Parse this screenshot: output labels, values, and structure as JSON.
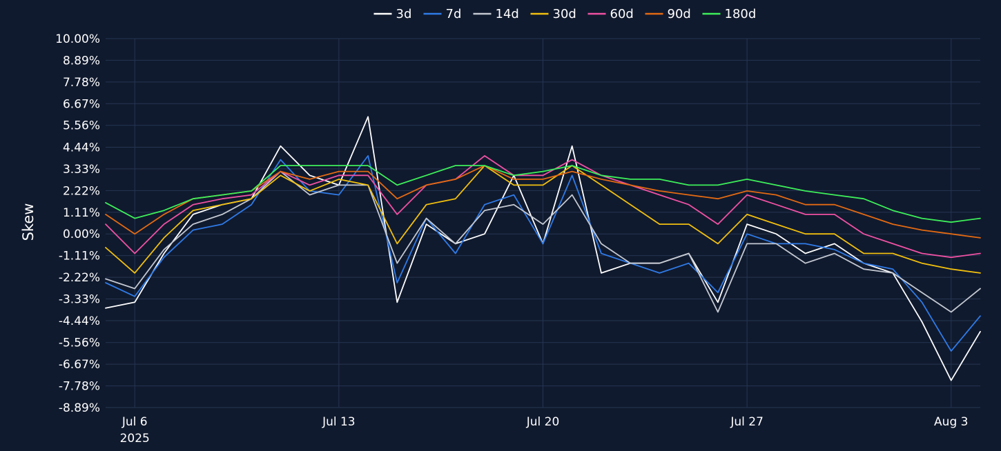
{
  "chart_data": {
    "type": "line",
    "title": "",
    "xlabel": "",
    "ylabel": "Skew",
    "ylim": [
      -8.89,
      10.0
    ],
    "yticks": [
      "10.00%",
      "8.89%",
      "7.78%",
      "6.67%",
      "5.56%",
      "4.44%",
      "3.33%",
      "2.22%",
      "1.11%",
      "0.00%",
      "-1.11%",
      "-2.22%",
      "-3.33%",
      "-4.44%",
      "-5.56%",
      "-6.67%",
      "-7.78%",
      "-8.89%"
    ],
    "xticks": [
      {
        "date": "2025-07-06",
        "label": "Jul 6",
        "sublabel": "2025"
      },
      {
        "date": "2025-07-13",
        "label": "Jul 13",
        "sublabel": ""
      },
      {
        "date": "2025-07-20",
        "label": "Jul 20",
        "sublabel": ""
      },
      {
        "date": "2025-07-27",
        "label": "Jul 27",
        "sublabel": ""
      },
      {
        "date": "2025-08-03",
        "label": "Aug 3",
        "sublabel": ""
      }
    ],
    "xlim": [
      "2025-07-05",
      "2025-08-04"
    ],
    "grid": true,
    "legend_position": "top",
    "series": [
      {
        "name": "3d",
        "color": "#ffffff",
        "x": [
          "2025-07-05",
          "2025-07-06",
          "2025-07-07",
          "2025-07-08",
          "2025-07-09",
          "2025-07-10",
          "2025-07-11",
          "2025-07-12",
          "2025-07-13",
          "2025-07-14",
          "2025-07-15",
          "2025-07-16",
          "2025-07-17",
          "2025-07-18",
          "2025-07-19",
          "2025-07-20",
          "2025-07-21",
          "2025-07-22",
          "2025-07-23",
          "2025-07-24",
          "2025-07-25",
          "2025-07-26",
          "2025-07-27",
          "2025-07-28",
          "2025-07-29",
          "2025-07-30",
          "2025-07-31",
          "2025-08-01",
          "2025-08-02",
          "2025-08-03",
          "2025-08-04"
        ],
        "values": [
          -3.8,
          -3.5,
          -1.0,
          1.0,
          1.5,
          1.8,
          4.5,
          3.0,
          2.5,
          6.0,
          -3.5,
          0.5,
          -0.5,
          0.0,
          3.0,
          -0.5,
          4.5,
          -2.0,
          -1.5,
          -1.5,
          -1.0,
          -3.5,
          0.5,
          0.0,
          -1.0,
          -0.5,
          -1.5,
          -2.0,
          -4.5,
          -7.5,
          -5.0
        ]
      },
      {
        "name": "7d",
        "color": "#2f7be8",
        "x": [
          "2025-07-05",
          "2025-07-06",
          "2025-07-07",
          "2025-07-08",
          "2025-07-09",
          "2025-07-10",
          "2025-07-11",
          "2025-07-12",
          "2025-07-13",
          "2025-07-14",
          "2025-07-15",
          "2025-07-16",
          "2025-07-17",
          "2025-07-18",
          "2025-07-19",
          "2025-07-20",
          "2025-07-21",
          "2025-07-22",
          "2025-07-23",
          "2025-07-24",
          "2025-07-25",
          "2025-07-26",
          "2025-07-27",
          "2025-07-28",
          "2025-07-29",
          "2025-07-30",
          "2025-07-31",
          "2025-08-01",
          "2025-08-02",
          "2025-08-03",
          "2025-08-04"
        ],
        "values": [
          -2.5,
          -3.2,
          -1.2,
          0.2,
          0.5,
          1.5,
          3.8,
          2.2,
          2.0,
          4.0,
          -2.5,
          0.8,
          -1.0,
          1.5,
          2.0,
          -0.5,
          3.0,
          -1.0,
          -1.5,
          -2.0,
          -1.5,
          -3.0,
          0.0,
          -0.5,
          -0.5,
          -0.8,
          -1.5,
          -1.8,
          -3.5,
          -6.0,
          -4.2
        ]
      },
      {
        "name": "14d",
        "color": "#c4c9d2",
        "x": [
          "2025-07-05",
          "2025-07-06",
          "2025-07-07",
          "2025-07-08",
          "2025-07-09",
          "2025-07-10",
          "2025-07-11",
          "2025-07-12",
          "2025-07-13",
          "2025-07-14",
          "2025-07-15",
          "2025-07-16",
          "2025-07-17",
          "2025-07-18",
          "2025-07-19",
          "2025-07-20",
          "2025-07-21",
          "2025-07-22",
          "2025-07-23",
          "2025-07-24",
          "2025-07-25",
          "2025-07-26",
          "2025-07-27",
          "2025-07-28",
          "2025-07-29",
          "2025-07-30",
          "2025-07-31",
          "2025-08-01",
          "2025-08-02",
          "2025-08-03",
          "2025-08-04"
        ],
        "values": [
          -2.3,
          -2.8,
          -0.8,
          0.5,
          1.0,
          1.8,
          3.2,
          2.0,
          2.5,
          2.5,
          -1.5,
          0.8,
          -0.5,
          1.2,
          1.5,
          0.5,
          2.0,
          -0.5,
          -1.5,
          -1.5,
          -1.0,
          -4.0,
          -0.5,
          -0.5,
          -1.5,
          -1.0,
          -1.8,
          -2.0,
          -3.0,
          -4.0,
          -2.8
        ]
      },
      {
        "name": "30d",
        "color": "#f2c00e",
        "x": [
          "2025-07-05",
          "2025-07-06",
          "2025-07-07",
          "2025-07-08",
          "2025-07-09",
          "2025-07-10",
          "2025-07-11",
          "2025-07-12",
          "2025-07-13",
          "2025-07-14",
          "2025-07-15",
          "2025-07-16",
          "2025-07-17",
          "2025-07-18",
          "2025-07-19",
          "2025-07-20",
          "2025-07-21",
          "2025-07-22",
          "2025-07-23",
          "2025-07-24",
          "2025-07-25",
          "2025-07-26",
          "2025-07-27",
          "2025-07-28",
          "2025-07-29",
          "2025-07-30",
          "2025-07-31",
          "2025-08-01",
          "2025-08-02",
          "2025-08-03",
          "2025-08-04"
        ],
        "values": [
          -0.7,
          -2.0,
          -0.2,
          1.2,
          1.5,
          1.8,
          3.0,
          2.2,
          2.8,
          2.5,
          -0.5,
          1.5,
          1.8,
          3.5,
          2.5,
          2.5,
          3.5,
          2.5,
          1.5,
          0.5,
          0.5,
          -0.5,
          1.0,
          0.5,
          0.0,
          0.0,
          -1.0,
          -1.0,
          -1.5,
          -1.8,
          -2.0
        ]
      },
      {
        "name": "60d",
        "color": "#f051a3",
        "x": [
          "2025-07-05",
          "2025-07-06",
          "2025-07-07",
          "2025-07-08",
          "2025-07-09",
          "2025-07-10",
          "2025-07-11",
          "2025-07-12",
          "2025-07-13",
          "2025-07-14",
          "2025-07-15",
          "2025-07-16",
          "2025-07-17",
          "2025-07-18",
          "2025-07-19",
          "2025-07-20",
          "2025-07-21",
          "2025-07-22",
          "2025-07-23",
          "2025-07-24",
          "2025-07-25",
          "2025-07-26",
          "2025-07-27",
          "2025-07-28",
          "2025-07-29",
          "2025-07-30",
          "2025-07-31",
          "2025-08-01",
          "2025-08-02",
          "2025-08-03",
          "2025-08-04"
        ],
        "values": [
          0.5,
          -1.0,
          0.5,
          1.5,
          1.8,
          2.0,
          3.2,
          2.5,
          3.0,
          3.0,
          1.0,
          2.5,
          2.8,
          4.0,
          3.0,
          3.0,
          3.8,
          3.0,
          2.5,
          2.0,
          1.5,
          0.5,
          2.0,
          1.5,
          1.0,
          1.0,
          0.0,
          -0.5,
          -1.0,
          -1.2,
          -1.0
        ]
      },
      {
        "name": "90d",
        "color": "#e46a12",
        "x": [
          "2025-07-05",
          "2025-07-06",
          "2025-07-07",
          "2025-07-08",
          "2025-07-09",
          "2025-07-10",
          "2025-07-11",
          "2025-07-12",
          "2025-07-13",
          "2025-07-14",
          "2025-07-15",
          "2025-07-16",
          "2025-07-17",
          "2025-07-18",
          "2025-07-19",
          "2025-07-20",
          "2025-07-21",
          "2025-07-22",
          "2025-07-23",
          "2025-07-24",
          "2025-07-25",
          "2025-07-26",
          "2025-07-27",
          "2025-07-28",
          "2025-07-29",
          "2025-07-30",
          "2025-07-31",
          "2025-08-01",
          "2025-08-02",
          "2025-08-03",
          "2025-08-04"
        ],
        "values": [
          1.0,
          0.0,
          1.0,
          1.8,
          2.0,
          2.2,
          3.2,
          2.8,
          3.2,
          3.2,
          1.8,
          2.5,
          2.8,
          3.5,
          2.8,
          2.8,
          3.2,
          2.8,
          2.5,
          2.2,
          2.0,
          1.8,
          2.2,
          2.0,
          1.5,
          1.5,
          1.0,
          0.5,
          0.2,
          0.0,
          -0.2
        ]
      },
      {
        "name": "180d",
        "color": "#3df05a",
        "x": [
          "2025-07-05",
          "2025-07-06",
          "2025-07-07",
          "2025-07-08",
          "2025-07-09",
          "2025-07-10",
          "2025-07-11",
          "2025-07-12",
          "2025-07-13",
          "2025-07-14",
          "2025-07-15",
          "2025-07-16",
          "2025-07-17",
          "2025-07-18",
          "2025-07-19",
          "2025-07-20",
          "2025-07-21",
          "2025-07-22",
          "2025-07-23",
          "2025-07-24",
          "2025-07-25",
          "2025-07-26",
          "2025-07-27",
          "2025-07-28",
          "2025-07-29",
          "2025-07-30",
          "2025-07-31",
          "2025-08-01",
          "2025-08-02",
          "2025-08-03",
          "2025-08-04"
        ],
        "values": [
          1.6,
          0.8,
          1.2,
          1.8,
          2.0,
          2.2,
          3.5,
          3.5,
          3.5,
          3.5,
          2.5,
          3.0,
          3.5,
          3.5,
          3.0,
          3.2,
          3.5,
          3.0,
          2.8,
          2.8,
          2.5,
          2.5,
          2.8,
          2.5,
          2.2,
          2.0,
          1.8,
          1.2,
          0.8,
          0.6,
          0.8
        ]
      }
    ]
  }
}
